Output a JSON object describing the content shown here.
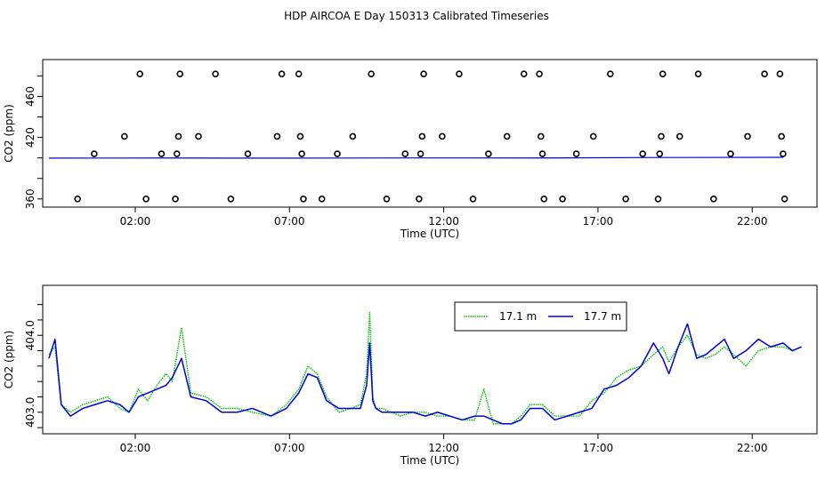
{
  "figure": {
    "title": "HDP AIRCOA E  Day 150313  Calibrated Timeseries"
  },
  "colors": {
    "series_17_1": "#00c000",
    "series_17_7": "#0000dd",
    "markers": "#000000",
    "frame": "#000000"
  },
  "chart_data": [
    {
      "type": "scatter",
      "title": "",
      "xlabel": "Time (UTC)",
      "ylabel": "CO2 (ppm)",
      "xlim": [
        -1.0,
        24.1
      ],
      "ylim": [
        352,
        496
      ],
      "x_ticks": [
        2,
        7,
        12,
        17,
        22
      ],
      "x_tick_labels": [
        "02:00",
        "07:00",
        "12:00",
        "17:00",
        "22:00"
      ],
      "y_ticks": [
        360,
        380,
        400,
        420,
        440,
        460,
        480
      ],
      "y_tick_labels": [
        "360",
        "",
        "",
        "420",
        "",
        "460",
        ""
      ],
      "grid": false,
      "markers": {
        "name": "calibration flags",
        "points": [
          [
            0.13,
            360
          ],
          [
            0.67,
            404
          ],
          [
            1.65,
            421
          ],
          [
            2.15,
            482
          ],
          [
            2.35,
            360
          ],
          [
            2.85,
            404
          ],
          [
            3.3,
            360
          ],
          [
            3.35,
            404
          ],
          [
            3.4,
            421
          ],
          [
            3.45,
            482
          ],
          [
            4.05,
            421
          ],
          [
            4.6,
            482
          ],
          [
            5.1,
            360
          ],
          [
            5.65,
            404
          ],
          [
            6.6,
            421
          ],
          [
            6.75,
            482
          ],
          [
            7.3,
            482
          ],
          [
            7.35,
            421
          ],
          [
            7.4,
            404
          ],
          [
            7.45,
            360
          ],
          [
            8.05,
            360
          ],
          [
            8.55,
            404
          ],
          [
            9.05,
            421
          ],
          [
            9.65,
            482
          ],
          [
            10.15,
            360
          ],
          [
            10.75,
            404
          ],
          [
            11.2,
            360
          ],
          [
            11.25,
            404
          ],
          [
            11.3,
            421
          ],
          [
            11.35,
            482
          ],
          [
            11.95,
            421
          ],
          [
            12.5,
            482
          ],
          [
            12.95,
            360
          ],
          [
            13.45,
            404
          ],
          [
            14.05,
            421
          ],
          [
            14.6,
            482
          ],
          [
            15.1,
            482
          ],
          [
            15.15,
            421
          ],
          [
            15.2,
            404
          ],
          [
            15.25,
            360
          ],
          [
            15.85,
            360
          ],
          [
            16.3,
            404
          ],
          [
            16.85,
            421
          ],
          [
            17.4,
            482
          ],
          [
            17.9,
            360
          ],
          [
            18.45,
            404
          ],
          [
            18.95,
            360
          ],
          [
            19.0,
            404
          ],
          [
            19.05,
            421
          ],
          [
            19.1,
            482
          ],
          [
            19.65,
            421
          ],
          [
            20.25,
            482
          ],
          [
            20.75,
            360
          ],
          [
            21.3,
            404
          ],
          [
            21.85,
            421
          ],
          [
            22.4,
            482
          ],
          [
            22.9,
            482
          ],
          [
            22.95,
            421
          ],
          [
            23.0,
            404
          ],
          [
            23.05,
            360
          ]
        ]
      },
      "series": [
        {
          "values": [
            [
              -0.8,
              399.8
            ],
            [
              3,
              399.9
            ],
            [
              7,
              399.8
            ],
            [
              11,
              400.0
            ],
            [
              15,
              399.9
            ],
            [
              19,
              400.4
            ],
            [
              23,
              400.6
            ]
          ]
        }
      ]
    },
    {
      "type": "line",
      "title": "",
      "xlabel": "Time (UTC)",
      "ylabel": "CO2 (ppm)",
      "xlim": [
        -1.0,
        24.1
      ],
      "ylim": [
        402.72,
        404.65
      ],
      "x_ticks": [
        2,
        7,
        12,
        17,
        22
      ],
      "x_tick_labels": [
        "02:00",
        "07:00",
        "12:00",
        "17:00",
        "22:00"
      ],
      "y_ticks": [
        402.8,
        403.0,
        403.2,
        403.4,
        403.6,
        403.8,
        404.0,
        404.2,
        404.4
      ],
      "y_tick_labels": [
        "",
        "403.0",
        "",
        "",
        "",
        "",
        "404.0",
        "",
        ""
      ],
      "grid": false,
      "legend": {
        "placement": "top-right",
        "entries": [
          "17.1 m",
          "17.7 m"
        ]
      },
      "series": [
        {
          "name": "17.1 m",
          "style": "dotted",
          "x": [
            -0.8,
            -0.6,
            -0.4,
            -0.1,
            0.3,
            0.7,
            1.1,
            1.5,
            1.8,
            2.1,
            2.4,
            2.7,
            3.0,
            3.2,
            3.5,
            3.8,
            4.3,
            4.8,
            5.3,
            5.8,
            6.4,
            6.9,
            7.3,
            7.6,
            7.9,
            8.2,
            8.6,
            9.0,
            9.3,
            9.5,
            9.6,
            9.7,
            9.8,
            10.0,
            10.3,
            10.6,
            11.0,
            11.4,
            11.8,
            12.2,
            12.6,
            13.0,
            13.3,
            13.6,
            13.9,
            14.2,
            14.5,
            14.8,
            15.2,
            15.6,
            16.0,
            16.4,
            16.8,
            17.2,
            17.6,
            18.0,
            18.4,
            18.8,
            19.1,
            19.3,
            19.6,
            19.9,
            20.2,
            20.5,
            20.8,
            21.1,
            21.4,
            21.8,
            22.2,
            22.6,
            23.0,
            23.3,
            23.6
          ],
          "values": [
            403.75,
            403.85,
            403.1,
            403.0,
            403.1,
            403.15,
            403.2,
            403.05,
            403.0,
            403.3,
            403.15,
            403.35,
            403.5,
            403.4,
            404.1,
            403.25,
            403.2,
            403.05,
            403.05,
            403.0,
            402.95,
            403.1,
            403.3,
            403.6,
            403.5,
            403.2,
            403.0,
            403.05,
            403.1,
            403.5,
            404.3,
            403.2,
            403.05,
            403.05,
            403.0,
            402.95,
            403.0,
            403.0,
            402.95,
            402.95,
            402.9,
            402.9,
            403.3,
            402.85,
            402.85,
            402.85,
            402.95,
            403.1,
            403.1,
            402.95,
            402.95,
            402.95,
            403.15,
            403.25,
            403.45,
            403.55,
            403.6,
            403.75,
            403.85,
            403.65,
            403.85,
            404.0,
            403.75,
            403.7,
            403.75,
            403.85,
            403.75,
            403.6,
            403.8,
            403.85,
            403.85,
            403.8,
            403.85
          ]
        },
        {
          "name": "17.7 m",
          "style": "solid",
          "x": [
            -0.8,
            -0.6,
            -0.4,
            -0.1,
            0.3,
            0.7,
            1.1,
            1.5,
            1.8,
            2.1,
            2.4,
            2.7,
            3.0,
            3.2,
            3.5,
            3.8,
            4.3,
            4.8,
            5.3,
            5.8,
            6.4,
            6.9,
            7.3,
            7.6,
            7.9,
            8.2,
            8.6,
            9.0,
            9.3,
            9.5,
            9.6,
            9.7,
            9.8,
            10.0,
            10.3,
            10.6,
            11.0,
            11.4,
            11.8,
            12.2,
            12.6,
            13.0,
            13.3,
            13.6,
            13.9,
            14.2,
            14.5,
            14.8,
            15.2,
            15.6,
            16.0,
            16.4,
            16.8,
            17.2,
            17.6,
            18.0,
            18.4,
            18.8,
            19.1,
            19.3,
            19.6,
            19.9,
            20.2,
            20.5,
            20.8,
            21.1,
            21.4,
            21.8,
            22.2,
            22.6,
            23.0,
            23.3,
            23.6
          ],
          "values": [
            403.7,
            403.95,
            403.1,
            402.95,
            403.05,
            403.1,
            403.15,
            403.1,
            403.0,
            403.2,
            403.25,
            403.3,
            403.35,
            403.45,
            403.7,
            403.2,
            403.15,
            403.0,
            403.0,
            403.05,
            402.95,
            403.05,
            403.25,
            403.5,
            403.45,
            403.15,
            403.05,
            403.05,
            403.05,
            403.35,
            403.9,
            403.15,
            403.05,
            403.0,
            403.0,
            403.0,
            403.0,
            402.95,
            403.0,
            402.95,
            402.9,
            402.95,
            402.95,
            402.9,
            402.85,
            402.85,
            402.9,
            403.05,
            403.05,
            402.9,
            402.95,
            403.0,
            403.05,
            403.3,
            403.35,
            403.45,
            403.6,
            403.9,
            403.7,
            403.5,
            403.85,
            404.15,
            403.7,
            403.75,
            403.85,
            403.95,
            403.7,
            403.8,
            403.95,
            403.85,
            403.9,
            403.8,
            403.85
          ]
        }
      ]
    }
  ]
}
